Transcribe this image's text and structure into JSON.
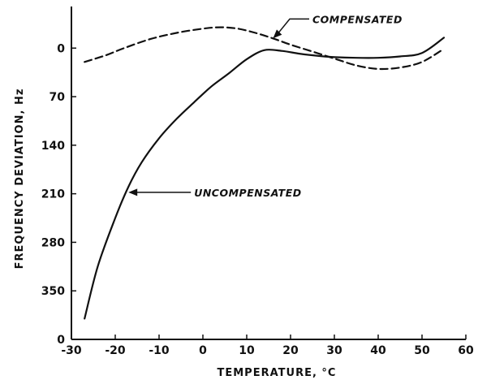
{
  "chart_data": {
    "type": "line",
    "xlabel": "TEMPERATURE, °C",
    "ylabel": "FREQUENCY DEVIATION, Hz",
    "x_ticks": [
      -30,
      -20,
      -10,
      0,
      10,
      20,
      30,
      40,
      50,
      60
    ],
    "x_tick_labels": [
      "-30",
      "-20",
      "-10",
      "0",
      "10",
      "20",
      "30",
      "40",
      "50",
      "60"
    ],
    "y_ticks": [
      0,
      70,
      140,
      210,
      280,
      350
    ],
    "y_tick_labels": [
      "0",
      "70",
      "140",
      "210",
      "280",
      "350"
    ],
    "xlim": [
      -30,
      60
    ],
    "ylim": [
      -60,
      420
    ],
    "y_inverted": true,
    "y_baseline_label": "0",
    "grid": false,
    "series": [
      {
        "name": "UNCOMPENSATED",
        "style": "solid",
        "x": [
          -27,
          -24,
          -20,
          -17,
          -14,
          -10,
          -6,
          -2,
          2,
          6,
          10,
          14,
          18,
          22,
          26,
          30,
          35,
          40,
          45,
          50,
          55
        ],
        "y": [
          390,
          315,
          245,
          200,
          165,
          130,
          102,
          78,
          55,
          36,
          16,
          3,
          4,
          8,
          11,
          13,
          14,
          14,
          12,
          7,
          -15
        ]
      },
      {
        "name": "COMPENSATED",
        "style": "dashed",
        "x": [
          -27,
          -22,
          -18,
          -12,
          -6,
          0,
          4,
          8,
          12,
          16,
          20,
          25,
          30,
          35,
          40,
          45,
          50,
          55
        ],
        "y": [
          20,
          10,
          0,
          -13,
          -22,
          -28,
          -30,
          -28,
          -22,
          -14,
          -5,
          5,
          15,
          25,
          30,
          28,
          20,
          1
        ]
      }
    ],
    "annotations": [
      {
        "text": "COMPENSATED",
        "x": 25,
        "y": -42,
        "arrow_to": [
          16,
          -14
        ]
      },
      {
        "text": "UNCOMPENSATED",
        "x": -2,
        "y": 208,
        "arrow_to": [
          -17,
          208
        ]
      }
    ]
  },
  "colors": {
    "line": "#111111",
    "background": "#ffffff"
  }
}
